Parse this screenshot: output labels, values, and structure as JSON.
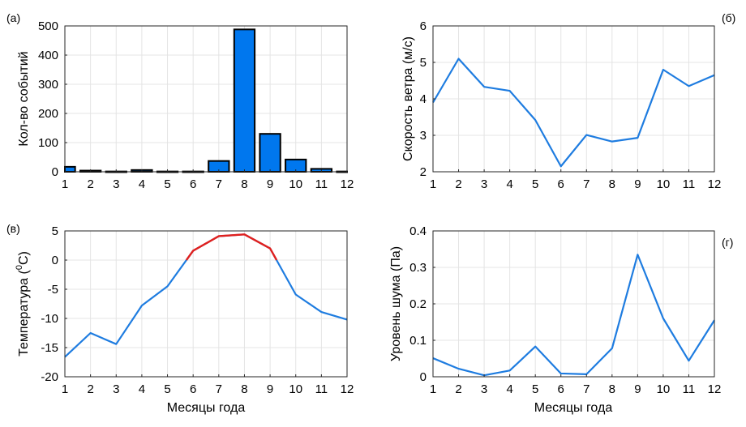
{
  "chart_data": [
    {
      "panel_label": "(а)",
      "type": "bar",
      "categories": [
        "1",
        "2",
        "3",
        "4",
        "5",
        "6",
        "7",
        "8",
        "9",
        "10",
        "11",
        "12"
      ],
      "values": [
        17,
        4,
        1,
        6,
        1,
        1,
        37,
        488,
        130,
        42,
        10,
        1
      ],
      "ylabel": "Кол-во событий",
      "xlabel": "",
      "ylim": [
        0,
        500
      ],
      "yticks": [
        "0",
        "100",
        "200",
        "300",
        "400",
        "500"
      ],
      "grid": true,
      "bar_color": "#0077ee"
    },
    {
      "panel_label": "(б)",
      "type": "line",
      "x": [
        1,
        2,
        3,
        4,
        5,
        6,
        7,
        8,
        9,
        10,
        11,
        12
      ],
      "values": [
        3.9,
        5.1,
        4.33,
        4.22,
        3.42,
        2.15,
        3.01,
        2.83,
        2.93,
        4.8,
        4.35,
        4.65
      ],
      "ylabel": "Скорость ветра (м/с)",
      "xlabel": "",
      "ylim": [
        2,
        6
      ],
      "yticks": [
        "2",
        "3",
        "4",
        "5",
        "6"
      ],
      "grid": true,
      "line_color": "#1e7ce0"
    },
    {
      "panel_label": "(в)",
      "type": "line",
      "x": [
        1,
        2,
        3,
        4,
        5,
        6,
        7,
        8,
        9,
        10,
        11,
        12
      ],
      "values": [
        -16.6,
        -12.5,
        -14.4,
        -7.8,
        -4.5,
        1.6,
        4.1,
        4.4,
        2.0,
        -5.9,
        -8.9,
        -10.2
      ],
      "ylabel": "Температура (",
      "ylabel_sup": "0",
      "ylabel_tail": "C)",
      "xlabel": "Месяцы года",
      "ylim": [
        -20,
        5
      ],
      "yticks": [
        "-20",
        "-15",
        "-10",
        "-5",
        "0",
        "5"
      ],
      "grid": true,
      "line_color": "#1e7ce0",
      "highlight_color": "#e0201e"
    },
    {
      "panel_label": "(г)",
      "type": "line",
      "x": [
        1,
        2,
        3,
        4,
        5,
        6,
        7,
        8,
        9,
        10,
        11,
        12
      ],
      "values": [
        0.051,
        0.022,
        0.004,
        0.017,
        0.083,
        0.009,
        0.007,
        0.078,
        0.335,
        0.16,
        0.044,
        0.155
      ],
      "ylabel": "Уровень шума (Па)",
      "xlabel": "Месяцы года",
      "ylim": [
        0,
        0.4
      ],
      "yticks": [
        "0",
        "0.1",
        "0.2",
        "0.3",
        "0.4"
      ],
      "grid": true,
      "line_color": "#1e7ce0"
    }
  ]
}
